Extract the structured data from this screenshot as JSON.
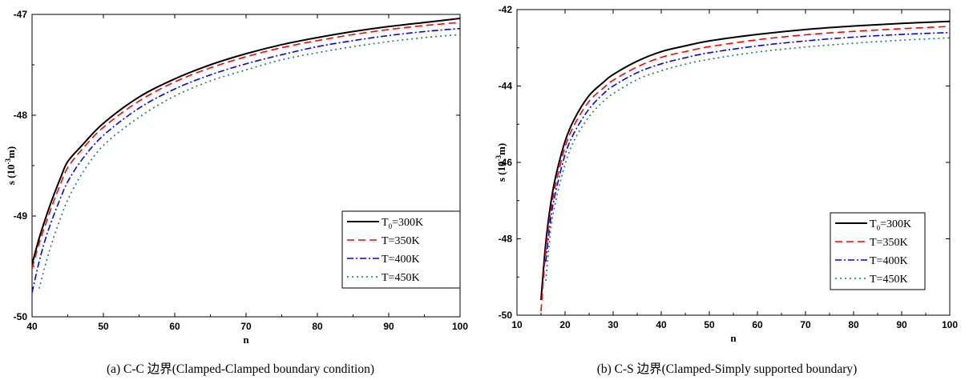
{
  "captions": {
    "a": "(a) C-C 边界(Clamped-Clamped boundary condition)",
    "b": "(b) C-S 边界(Clamped-Simply supported boundary)"
  },
  "chart_data": [
    {
      "type": "line",
      "caption": "(a) C-C 边界(Clamped-Clamped boundary condition)",
      "xlabel": "n",
      "ylabel_main": "s (10",
      "ylabel_sup": "-3",
      "ylabel_end": "m)",
      "xlim": [
        40,
        100
      ],
      "ylim": [
        -50,
        -47
      ],
      "xticks": [
        40,
        50,
        60,
        70,
        80,
        90,
        100
      ],
      "yticks": [
        -50,
        -49,
        -48,
        -47
      ],
      "legend_position": "bottom-right",
      "series": [
        {
          "name": "T0=300K",
          "label_main": "T",
          "label_sub": "0",
          "label_tail": "=300K",
          "color": "#000000",
          "dash": "",
          "width": 2.0,
          "x": [
            40,
            41,
            42,
            43,
            44,
            45,
            47,
            50,
            55,
            60,
            65,
            70,
            75,
            80,
            85,
            90,
            95,
            100
          ],
          "y": [
            -49.48,
            -49.22,
            -49.0,
            -48.8,
            -48.62,
            -48.46,
            -48.3,
            -48.08,
            -47.82,
            -47.64,
            -47.5,
            -47.39,
            -47.3,
            -47.23,
            -47.17,
            -47.12,
            -47.08,
            -47.04
          ]
        },
        {
          "name": "T=350K",
          "label_main": "T=350K",
          "label_sub": "",
          "label_tail": "",
          "color": "#ff0000",
          "dash": "9,5",
          "width": 1.6,
          "x": [
            40,
            41,
            42,
            43,
            44,
            45,
            47,
            50,
            55,
            60,
            65,
            70,
            75,
            80,
            85,
            90,
            95,
            100
          ],
          "y": [
            -49.52,
            -49.27,
            -49.06,
            -48.86,
            -48.68,
            -48.52,
            -48.34,
            -48.12,
            -47.86,
            -47.67,
            -47.53,
            -47.42,
            -47.33,
            -47.26,
            -47.2,
            -47.15,
            -47.11,
            -47.08
          ]
        },
        {
          "name": "T=400K",
          "label_main": "T=400K",
          "label_sub": "",
          "label_tail": "",
          "color": "#0000ff",
          "dash": "8,3,2,3",
          "width": 1.6,
          "x": [
            40,
            41,
            42,
            43,
            44,
            45,
            47,
            50,
            55,
            60,
            65,
            70,
            75,
            80,
            85,
            90,
            95,
            100
          ],
          "y": [
            -49.76,
            -49.45,
            -49.2,
            -49.0,
            -48.82,
            -48.66,
            -48.44,
            -48.2,
            -47.93,
            -47.74,
            -47.6,
            -47.49,
            -47.4,
            -47.32,
            -47.26,
            -47.21,
            -47.17,
            -47.14
          ]
        },
        {
          "name": "T=450K",
          "label_main": "T=450K",
          "label_sub": "",
          "label_tail": "",
          "color": "#008080",
          "dash": "2,4",
          "width": 1.6,
          "x": [
            41,
            42,
            43,
            44,
            45,
            47,
            50,
            55,
            60,
            65,
            70,
            75,
            80,
            85,
            90,
            95,
            100
          ],
          "y": [
            -49.72,
            -49.45,
            -49.22,
            -49.02,
            -48.84,
            -48.58,
            -48.3,
            -48.02,
            -47.81,
            -47.66,
            -47.55,
            -47.45,
            -47.38,
            -47.32,
            -47.27,
            -47.23,
            -47.2
          ]
        }
      ]
    },
    {
      "type": "line",
      "caption": "(b) C-S 边界(Clamped-Simply supported boundary)",
      "xlabel": "n",
      "ylabel_main": "s (10",
      "ylabel_sup": "-3",
      "ylabel_end": "m)",
      "xlim": [
        10,
        100
      ],
      "ylim": [
        -50,
        -42
      ],
      "xticks": [
        10,
        20,
        30,
        40,
        50,
        60,
        70,
        80,
        90,
        100
      ],
      "yticks": [
        -50,
        -48,
        -46,
        -44,
        -42
      ],
      "legend_position": "bottom-right",
      "series": [
        {
          "name": "T0=300K",
          "label_main": "T",
          "label_sub": "0",
          "label_tail": "=300K",
          "color": "#000000",
          "dash": "",
          "width": 2.0,
          "x": [
            15,
            16,
            17,
            18,
            20,
            22,
            25,
            28,
            30,
            35,
            40,
            45,
            50,
            60,
            70,
            80,
            90,
            100
          ],
          "y": [
            -49.6,
            -48.1,
            -47.1,
            -46.4,
            -45.45,
            -44.85,
            -44.25,
            -43.9,
            -43.7,
            -43.35,
            -43.1,
            -42.95,
            -42.82,
            -42.65,
            -42.52,
            -42.43,
            -42.36,
            -42.31
          ]
        },
        {
          "name": "T=350K",
          "label_main": "T=350K",
          "label_sub": "",
          "label_tail": "",
          "color": "#ff0000",
          "dash": "9,5",
          "width": 1.6,
          "x": [
            15,
            16,
            17,
            18,
            20,
            22,
            25,
            28,
            30,
            35,
            40,
            45,
            50,
            60,
            70,
            80,
            90,
            100
          ],
          "y": [
            -49.9,
            -48.3,
            -47.3,
            -46.6,
            -45.6,
            -45.0,
            -44.4,
            -44.05,
            -43.85,
            -43.5,
            -43.25,
            -43.1,
            -42.97,
            -42.79,
            -42.66,
            -42.57,
            -42.5,
            -42.44
          ]
        },
        {
          "name": "T=400K",
          "label_main": "T=400K",
          "label_sub": "",
          "label_tail": "",
          "color": "#0000ff",
          "dash": "8,3,2,3",
          "width": 1.6,
          "x": [
            16,
            17,
            18,
            20,
            22,
            25,
            28,
            30,
            35,
            40,
            45,
            50,
            60,
            70,
            80,
            90,
            100
          ],
          "y": [
            -48.6,
            -47.5,
            -46.8,
            -45.8,
            -45.2,
            -44.6,
            -44.2,
            -44.0,
            -43.65,
            -43.42,
            -43.26,
            -43.13,
            -42.95,
            -42.82,
            -42.72,
            -42.65,
            -42.6
          ]
        },
        {
          "name": "T=450K",
          "label_main": "T=450K",
          "label_sub": "",
          "label_tail": "",
          "color": "#008080",
          "dash": "2,4",
          "width": 1.6,
          "x": [
            16,
            17,
            18,
            20,
            22,
            25,
            28,
            30,
            35,
            40,
            45,
            50,
            60,
            70,
            80,
            90,
            100
          ],
          "y": [
            -49.1,
            -47.8,
            -47.05,
            -46.05,
            -45.4,
            -44.8,
            -44.4,
            -44.2,
            -43.83,
            -43.6,
            -43.43,
            -43.3,
            -43.11,
            -42.98,
            -42.88,
            -42.8,
            -42.74
          ]
        }
      ]
    }
  ]
}
